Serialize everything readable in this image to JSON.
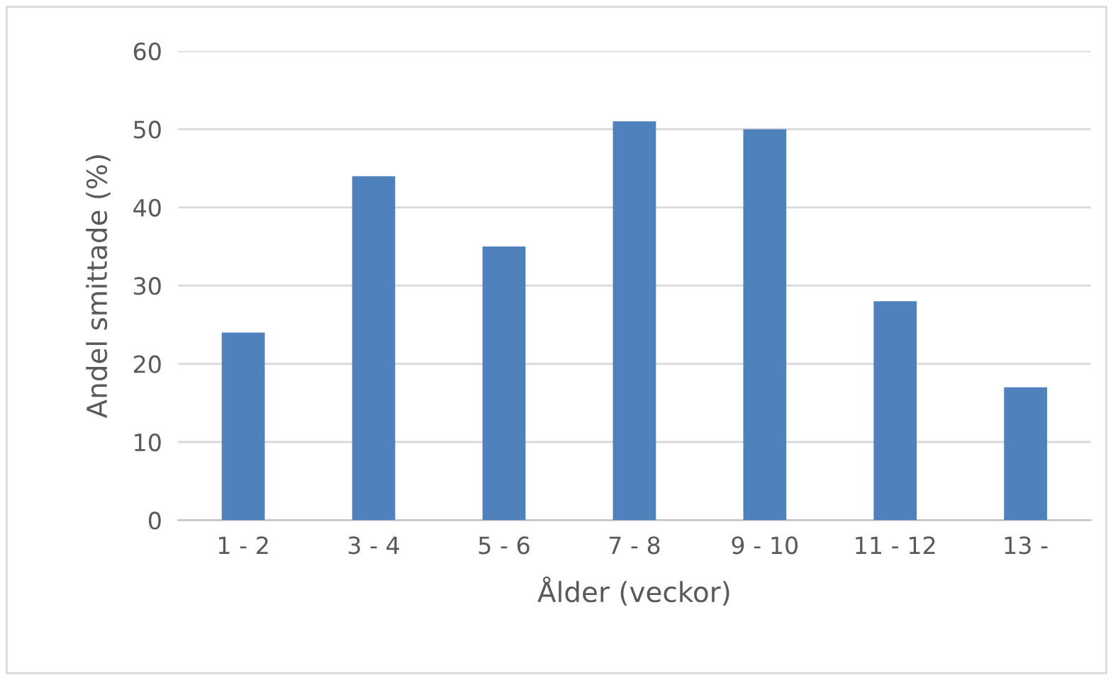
{
  "chart_data": {
    "type": "bar",
    "xlabel": "Ålder (veckor)",
    "ylabel": "Andel smittade (%)",
    "categories": [
      "1 - 2",
      "3 - 4",
      "5 - 6",
      "7 - 8",
      "9 - 10",
      "11 - 12",
      "13 -"
    ],
    "values": [
      24,
      44,
      35,
      51,
      50,
      28,
      17
    ],
    "color": "#4f81bd",
    "ylim": [
      0,
      60
    ],
    "yticks": [
      0,
      10,
      20,
      30,
      40,
      50,
      60
    ],
    "grid": "y"
  }
}
